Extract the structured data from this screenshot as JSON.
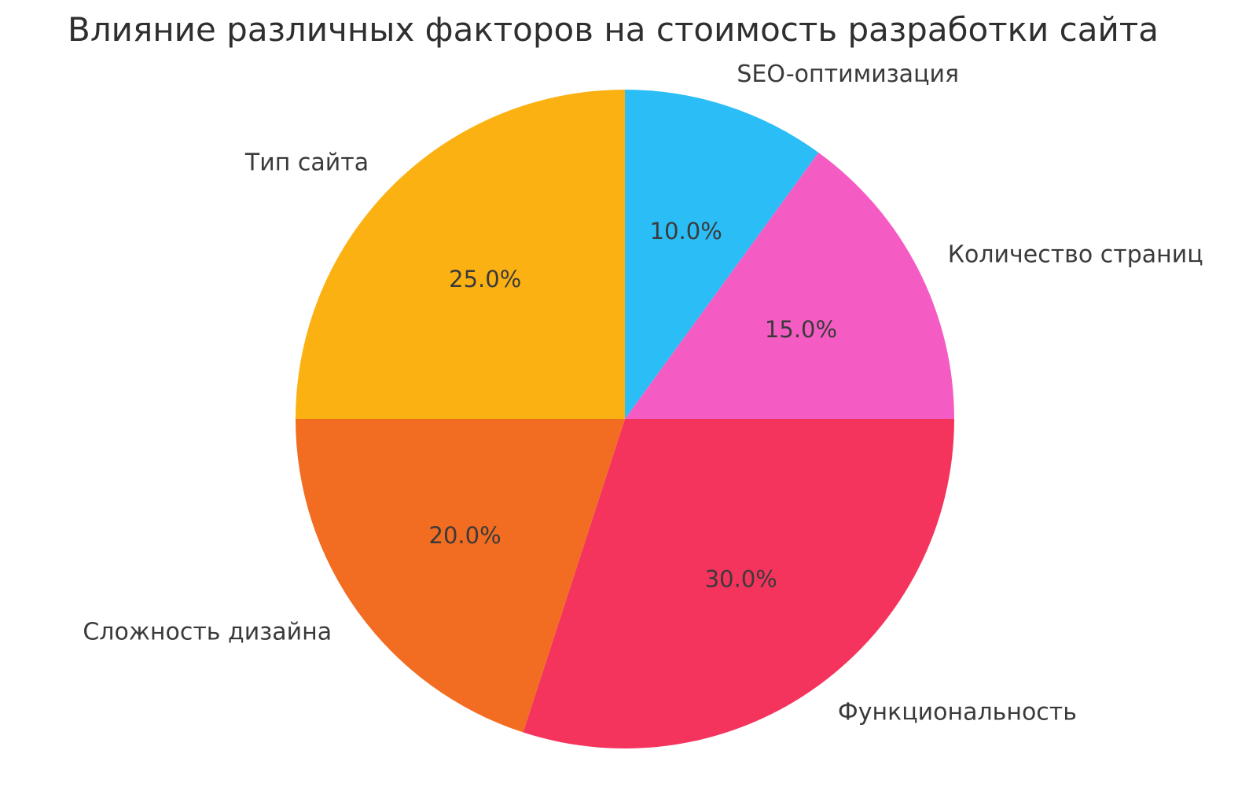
{
  "chart_data": {
    "type": "pie",
    "title": "Влияние различных факторов на стоимость разработки сайта",
    "slices": [
      {
        "label": "SEO-оптимизация",
        "value": 10,
        "pct_label": "10.0%",
        "color": "#2BBDF6"
      },
      {
        "label": "Количество страниц",
        "value": 15,
        "pct_label": "15.0%",
        "color": "#F55CC3"
      },
      {
        "label": "Функциональность",
        "value": 30,
        "pct_label": "30.0%",
        "color": "#F4345C"
      },
      {
        "label": "Сложность дизайна",
        "value": 20,
        "pct_label": "20.0%",
        "color": "#F26C22"
      },
      {
        "label": "Тип сайта",
        "value": 25,
        "pct_label": "25.0%",
        "color": "#FCB113"
      }
    ],
    "start_angle_deg": 90,
    "clockwise": true,
    "legend": "none",
    "grid": "off",
    "background_color": "#FFFFFF",
    "text_color": "#3A3A3A"
  }
}
